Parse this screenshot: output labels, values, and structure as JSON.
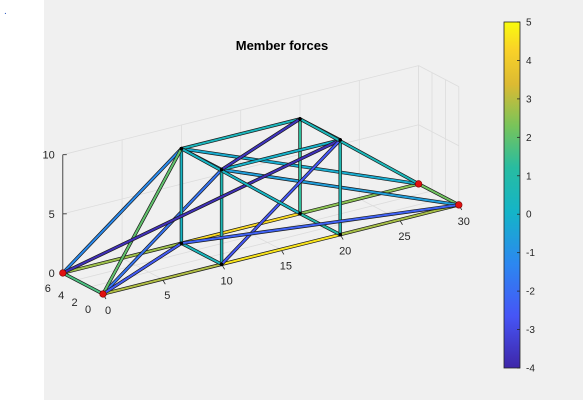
{
  "chart_data": {
    "type": "truss-3d",
    "title": "Member forces",
    "axes": {
      "x": {
        "ticks": [
          0,
          5,
          10,
          15,
          20,
          25,
          30
        ],
        "lim": [
          0,
          30
        ]
      },
      "y": {
        "ticks": [
          0,
          2,
          4,
          6
        ],
        "lim": [
          0,
          6
        ]
      },
      "z": {
        "ticks": [
          0,
          5,
          10
        ],
        "lim": [
          0,
          10
        ]
      },
      "grid": true
    },
    "colorbar": {
      "ticks": [
        5,
        4,
        3,
        2,
        1,
        0,
        -1,
        -2,
        -3,
        -4
      ],
      "lim": [
        -4,
        5
      ],
      "colormap": "parula",
      "placement": "right"
    },
    "nodes": [
      {
        "id": 1,
        "x": 0,
        "y": 0,
        "z": 0,
        "support": true
      },
      {
        "id": 2,
        "x": 0,
        "y": 6,
        "z": 0,
        "support": true
      },
      {
        "id": 3,
        "x": 10,
        "y": 0,
        "z": 0,
        "support": false
      },
      {
        "id": 4,
        "x": 10,
        "y": 6,
        "z": 0,
        "support": false
      },
      {
        "id": 5,
        "x": 20,
        "y": 0,
        "z": 0,
        "support": false
      },
      {
        "id": 6,
        "x": 20,
        "y": 6,
        "z": 0,
        "support": false
      },
      {
        "id": 7,
        "x": 30,
        "y": 0,
        "z": 0,
        "support": true
      },
      {
        "id": 8,
        "x": 30,
        "y": 6,
        "z": 0,
        "support": true
      },
      {
        "id": 9,
        "x": 10,
        "y": 0,
        "z": 8,
        "support": false
      },
      {
        "id": 10,
        "x": 10,
        "y": 6,
        "z": 8,
        "support": false
      },
      {
        "id": 11,
        "x": 20,
        "y": 0,
        "z": 8,
        "support": false
      },
      {
        "id": 12,
        "x": 20,
        "y": 6,
        "z": 8,
        "support": false
      }
    ],
    "members": [
      {
        "n1": 1,
        "n2": 3,
        "force": 2.9
      },
      {
        "n1": 3,
        "n2": 5,
        "force": 4.6
      },
      {
        "n1": 5,
        "n2": 7,
        "force": 2.8
      },
      {
        "n1": 2,
        "n2": 4,
        "force": 2.7
      },
      {
        "n1": 4,
        "n2": 6,
        "force": 4.4
      },
      {
        "n1": 6,
        "n2": 8,
        "force": 2.5
      },
      {
        "n1": 1,
        "n2": 2,
        "force": 1.7
      },
      {
        "n1": 3,
        "n2": 4,
        "force": 0.4
      },
      {
        "n1": 5,
        "n2": 6,
        "force": 1.0
      },
      {
        "n1": 7,
        "n2": 8,
        "force": 2.2
      },
      {
        "n1": 1,
        "n2": 9,
        "force": -1.8
      },
      {
        "n1": 2,
        "n2": 10,
        "force": -1.2
      },
      {
        "n1": 9,
        "n2": 7,
        "force": -0.6
      },
      {
        "n1": 10,
        "n2": 8,
        "force": -0.2
      },
      {
        "n1": 3,
        "n2": 9,
        "force": 0.6
      },
      {
        "n1": 4,
        "n2": 10,
        "force": 0.2
      },
      {
        "n1": 5,
        "n2": 11,
        "force": 0.7
      },
      {
        "n1": 6,
        "n2": 12,
        "force": 1.3
      },
      {
        "n1": 9,
        "n2": 11,
        "force": 0.0
      },
      {
        "n1": 10,
        "n2": 12,
        "force": 0.4
      },
      {
        "n1": 9,
        "n2": 10,
        "force": -0.5
      },
      {
        "n1": 11,
        "n2": 12,
        "force": 1.0
      },
      {
        "n1": 1,
        "n2": 10,
        "force": 2.0
      },
      {
        "n1": 2,
        "n2": 11,
        "force": -3.7
      },
      {
        "n1": 3,
        "n2": 11,
        "force": -2.6
      },
      {
        "n1": 9,
        "n2": 12,
        "force": -3.6
      },
      {
        "n1": 10,
        "n2": 6,
        "force": 0.2
      },
      {
        "n1": 12,
        "n2": 8,
        "force": 0.5
      },
      {
        "n1": 4,
        "n2": 7,
        "force": -2.3
      },
      {
        "n1": 1,
        "n2": 4,
        "force": -2.5
      }
    ]
  }
}
